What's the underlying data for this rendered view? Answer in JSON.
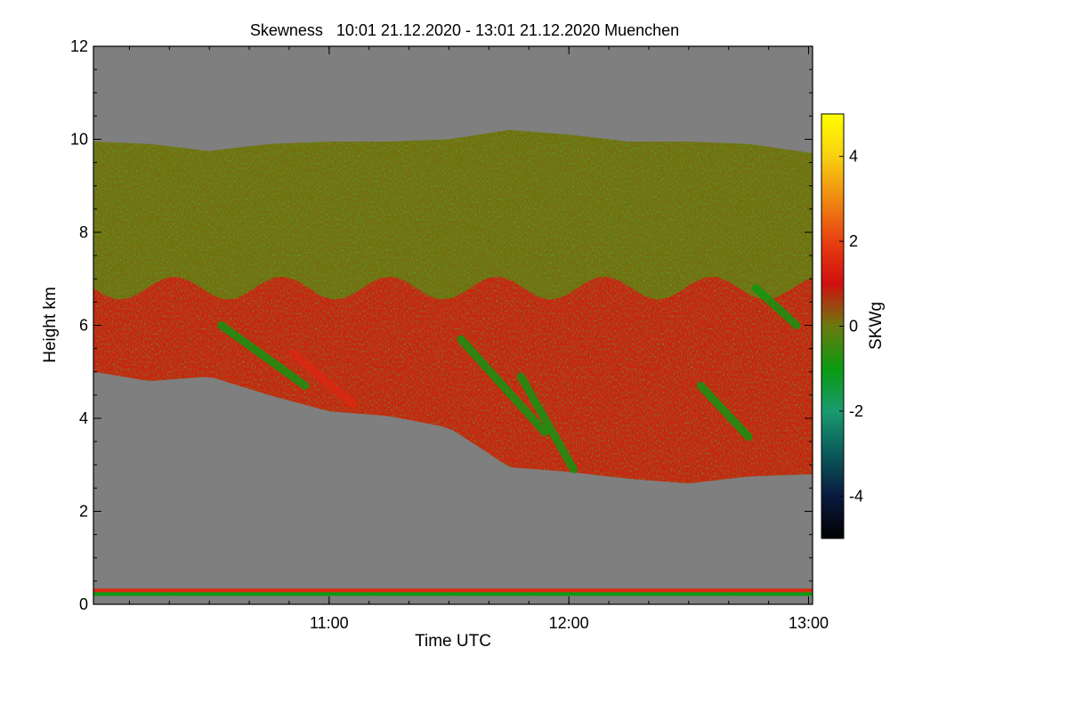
{
  "chart_data": {
    "type": "heatmap",
    "title": "Skewness   10:01 21.12.2020 - 13:01 21.12.2020 Muenchen",
    "xlabel": "Time UTC",
    "ylabel": "Height km",
    "colorbar_label": "SKWg",
    "x_start_hours": 10.0167,
    "x_end_hours": 13.0167,
    "xticks": [
      {
        "hours": 11.0,
        "label": "11:00"
      },
      {
        "hours": 12.0,
        "label": "12:00"
      },
      {
        "hours": 13.0,
        "label": "13:00"
      }
    ],
    "x_minor_step_minutes": 10,
    "ylim": [
      0,
      12
    ],
    "yticks": [
      0,
      2,
      4,
      6,
      8,
      10,
      12
    ],
    "y_minor_step": 0.5,
    "colorbar_range": [
      -5,
      5
    ],
    "colorbar_ticks": [
      -4,
      -2,
      0,
      2,
      4
    ],
    "colormap_stops": [
      {
        "value": -5,
        "color": "#000000"
      },
      {
        "value": -4,
        "color": "#0a1a40"
      },
      {
        "value": -3,
        "color": "#0a5a5a"
      },
      {
        "value": -2,
        "color": "#1a9a70"
      },
      {
        "value": -1,
        "color": "#0a9a10"
      },
      {
        "value": 0,
        "color": "#6a7a10"
      },
      {
        "value": 1,
        "color": "#d01010"
      },
      {
        "value": 2,
        "color": "#e84010"
      },
      {
        "value": 3,
        "color": "#f08a10"
      },
      {
        "value": 4,
        "color": "#f8d010"
      },
      {
        "value": 5,
        "color": "#ffff00"
      }
    ],
    "no_data_color": "#7f7f7f",
    "cloud_top_km": [
      {
        "t": 10.02,
        "h": 9.95
      },
      {
        "t": 10.25,
        "h": 9.9
      },
      {
        "t": 10.5,
        "h": 9.75
      },
      {
        "t": 10.75,
        "h": 9.9
      },
      {
        "t": 11.0,
        "h": 9.95
      },
      {
        "t": 11.25,
        "h": 9.95
      },
      {
        "t": 11.5,
        "h": 10.0
      },
      {
        "t": 11.75,
        "h": 10.2
      },
      {
        "t": 12.0,
        "h": 10.1
      },
      {
        "t": 12.25,
        "h": 9.95
      },
      {
        "t": 12.5,
        "h": 9.95
      },
      {
        "t": 12.75,
        "h": 9.9
      },
      {
        "t": 13.02,
        "h": 9.7
      }
    ],
    "cloud_base_km": [
      {
        "t": 10.02,
        "h": 5.0
      },
      {
        "t": 10.25,
        "h": 4.8
      },
      {
        "t": 10.5,
        "h": 4.9
      },
      {
        "t": 10.75,
        "h": 4.5
      },
      {
        "t": 11.0,
        "h": 4.15
      },
      {
        "t": 11.25,
        "h": 4.05
      },
      {
        "t": 11.5,
        "h": 3.8
      },
      {
        "t": 11.65,
        "h": 3.3
      },
      {
        "t": 11.75,
        "h": 2.95
      },
      {
        "t": 12.0,
        "h": 2.85
      },
      {
        "t": 12.25,
        "h": 2.7
      },
      {
        "t": 12.5,
        "h": 2.6
      },
      {
        "t": 12.75,
        "h": 2.75
      },
      {
        "t": 13.02,
        "h": 2.8
      }
    ],
    "bands_km": [
      {
        "bottom": 4.8,
        "top": 6.8,
        "skewness": 1.2
      },
      {
        "bottom": 6.8,
        "top": 10.0,
        "skewness": 0.1
      }
    ],
    "fall_streaks": [
      {
        "t0": 10.55,
        "h0": 6.0,
        "t1": 10.9,
        "h1": 4.7,
        "skewness": -1
      },
      {
        "t0": 10.85,
        "h0": 5.4,
        "t1": 11.1,
        "h1": 4.3,
        "skewness": 1.5
      },
      {
        "t0": 11.55,
        "h0": 5.7,
        "t1": 11.9,
        "h1": 3.7,
        "skewness": -1
      },
      {
        "t0": 11.8,
        "h0": 4.9,
        "t1": 12.02,
        "h1": 2.9,
        "skewness": -1
      },
      {
        "t0": 12.55,
        "h0": 4.7,
        "t1": 12.75,
        "h1": 3.6,
        "skewness": -1
      },
      {
        "t0": 12.78,
        "h0": 6.8,
        "t1": 12.95,
        "h1": 6.0,
        "skewness": -1
      }
    ],
    "low_layer_km": [
      {
        "h": 0.3,
        "skewness": 1.5
      },
      {
        "h": 0.22,
        "skewness": -1
      }
    ]
  }
}
